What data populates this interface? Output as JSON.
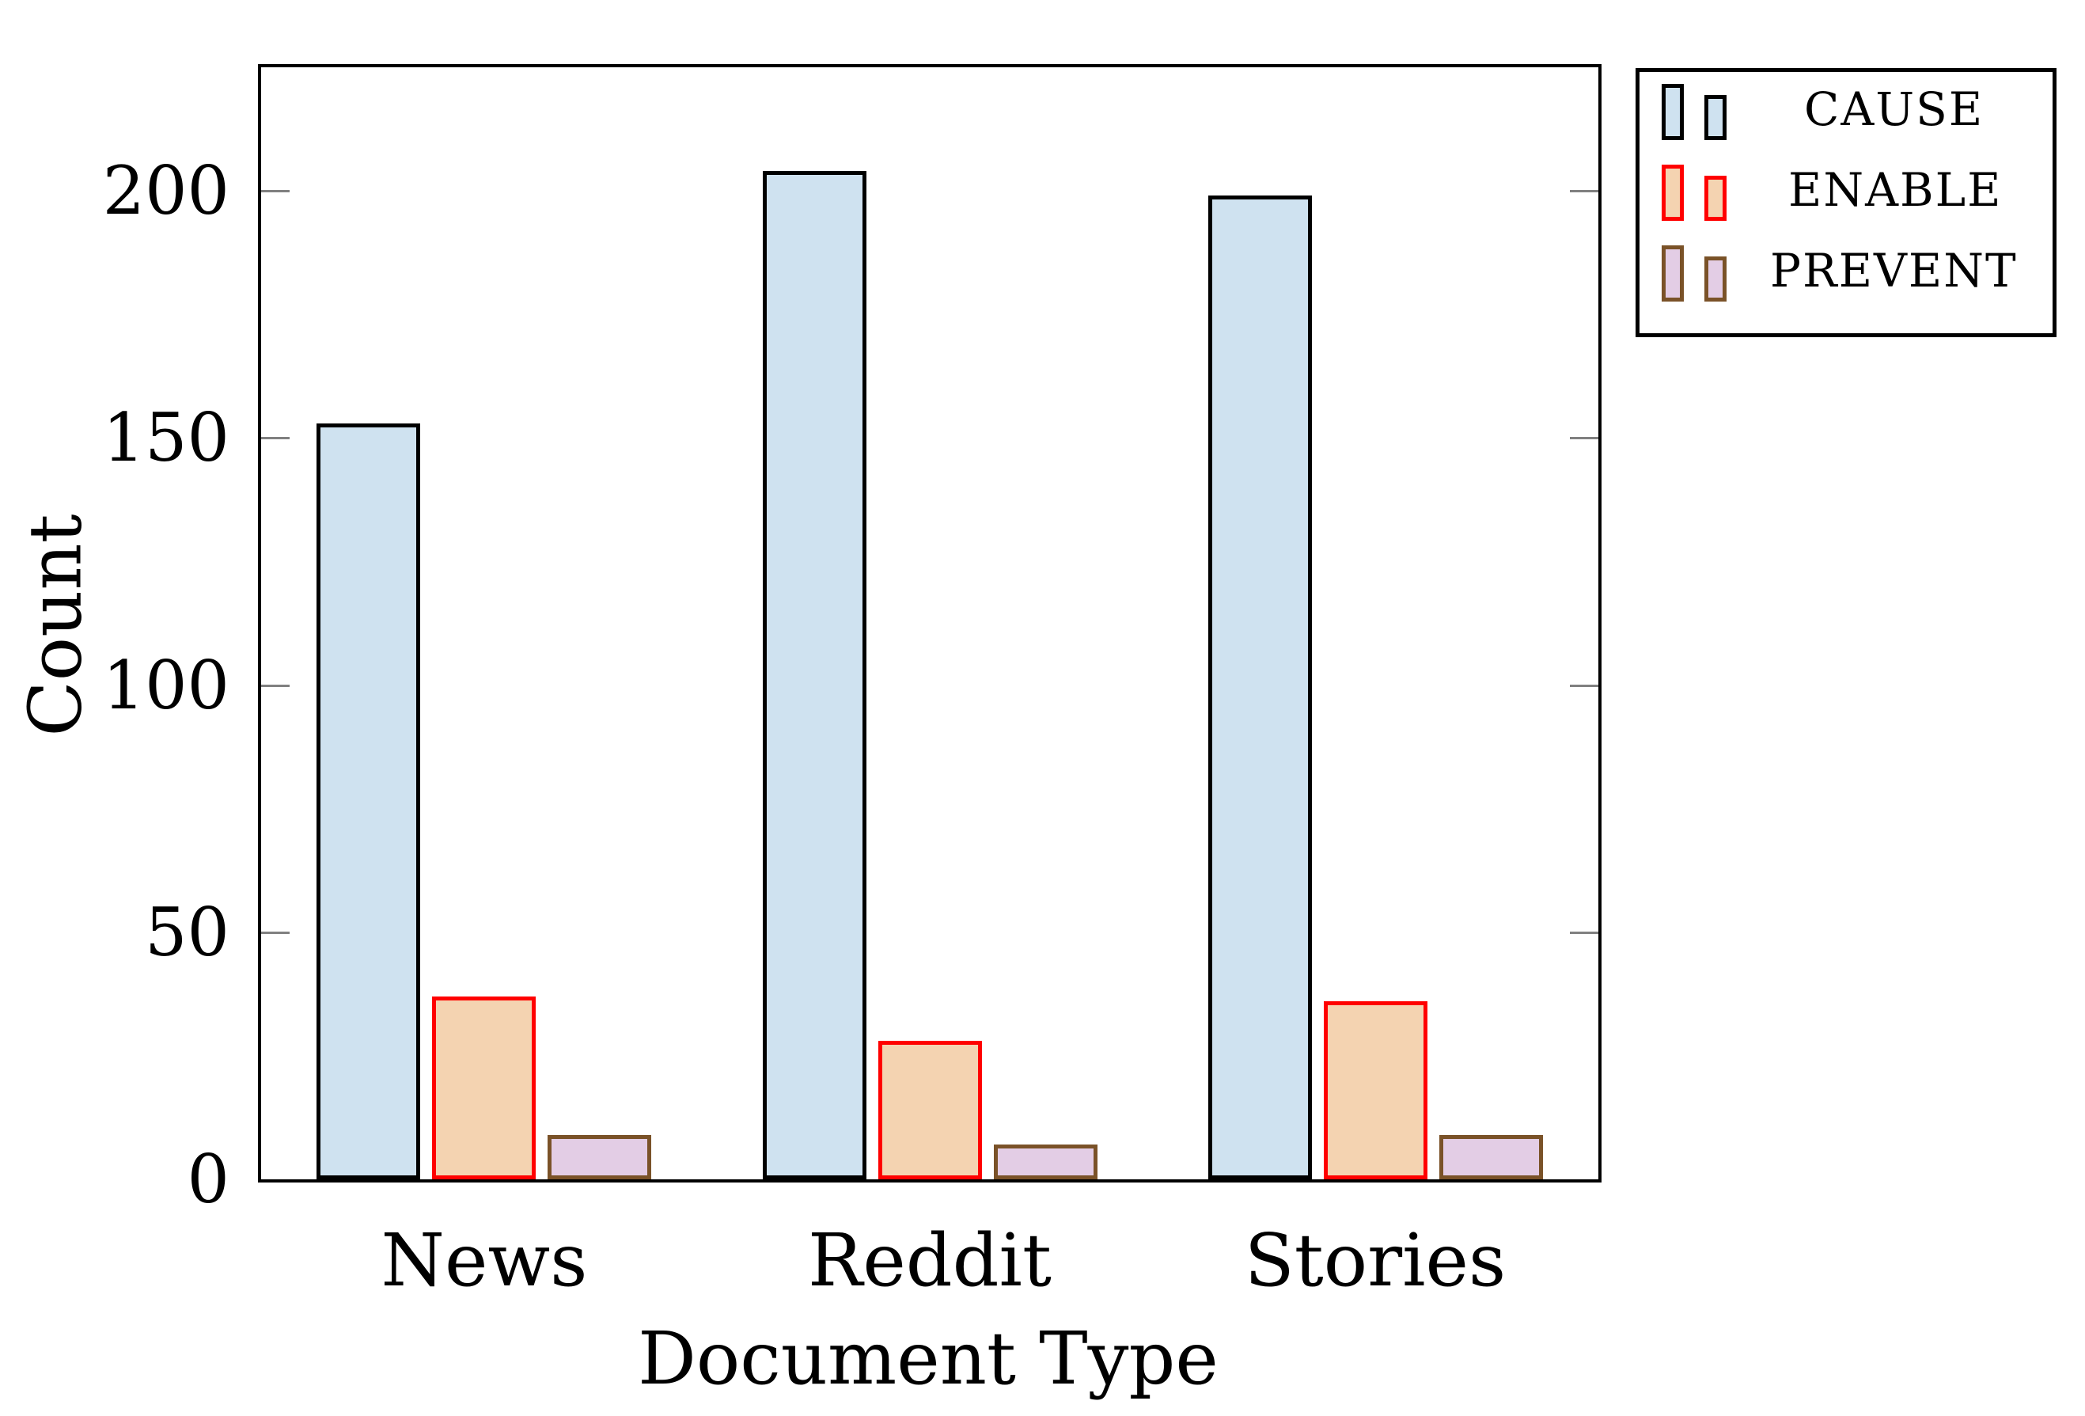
{
  "chart_data": {
    "type": "bar",
    "title": "",
    "xlabel": "Document Type",
    "ylabel": "Count",
    "categories": [
      "News",
      "Reddit",
      "Stories"
    ],
    "series": [
      {
        "name": "CAUSE",
        "fill": "#cfe2f0",
        "border": "#000000",
        "values": [
          153,
          204,
          199
        ]
      },
      {
        "name": "ENABLE",
        "fill": "#f4d3b1",
        "border": "#ff0000",
        "values": [
          37,
          28,
          36
        ]
      },
      {
        "name": "PREVENT",
        "fill": "#e3cde5",
        "border": "#7a5228",
        "values": [
          9,
          7,
          9
        ]
      }
    ],
    "yticks": [
      0,
      50,
      100,
      150,
      200
    ],
    "ylim": [
      0,
      225
    ],
    "grid": false,
    "legend_position": "outside-top-right",
    "axis_color": "#000000",
    "tick_color": "#808080"
  }
}
